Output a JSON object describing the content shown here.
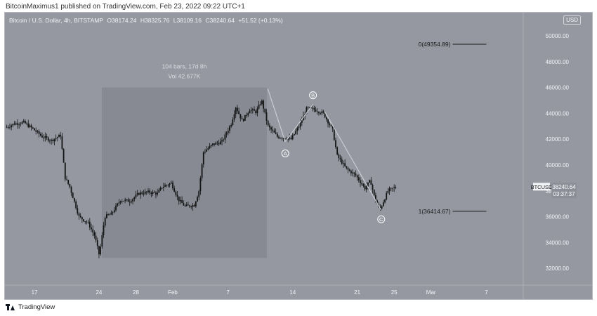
{
  "header": {
    "publisher": "BitcoinMaximus1 published on TradingView.com, Feb 23, 2022 09:22 UTC+1"
  },
  "symbol_bar": {
    "name": "Bitcoin / U.S. Dollar, 4h, BITSTAMP",
    "open": "O38174.24",
    "high": "H38325.76",
    "low": "L38109.16",
    "close": "C38240.64",
    "change": "+51.52 (+0.13%)"
  },
  "currency_button": "USD",
  "footer": {
    "brand": "TradingView"
  },
  "colors": {
    "background": "#9598a1",
    "candle": "#141414",
    "range_box": "#878a93",
    "text_light": "#f2f3f7",
    "wave_line": "#c9ccd3"
  },
  "chart_data": {
    "type": "candlestick",
    "y_ticks": [
      "32000.00",
      "34000.00",
      "36000.00",
      "38000.00",
      "40000.00",
      "42000.00",
      "44000.00",
      "46000.00",
      "48000.00",
      "50000.00"
    ],
    "ylim": [
      30700,
      51800
    ],
    "x_ticks": [
      {
        "label": "17",
        "day": 17
      },
      {
        "label": "24",
        "day": 24
      },
      {
        "label": "28",
        "day": 28
      },
      {
        "label": "Feb",
        "day": 32
      },
      {
        "label": "7",
        "day": 38
      },
      {
        "label": "14",
        "day": 45
      },
      {
        "label": "21",
        "day": 52
      },
      {
        "label": "25",
        "day": 56
      },
      {
        "label": "Mar",
        "day": 60
      },
      {
        "label": "7",
        "day": 66
      }
    ],
    "xlim": [
      13.8,
      70
    ],
    "price_path": [
      [
        14.0,
        42900
      ],
      [
        15.0,
        43200
      ],
      [
        16.0,
        43300
      ],
      [
        17.0,
        42800
      ],
      [
        18.0,
        42200
      ],
      [
        19.0,
        41900
      ],
      [
        20.0,
        42300
      ],
      [
        20.5,
        39000
      ],
      [
        21.0,
        38300
      ],
      [
        22.0,
        36000
      ],
      [
        23.0,
        35500
      ],
      [
        23.7,
        34500
      ],
      [
        24.2,
        33000
      ],
      [
        24.8,
        36000
      ],
      [
        25.5,
        36200
      ],
      [
        26.5,
        37300
      ],
      [
        27.5,
        37200
      ],
      [
        28.5,
        37800
      ],
      [
        29.5,
        37900
      ],
      [
        30.5,
        37800
      ],
      [
        31.0,
        38300
      ],
      [
        32.0,
        38600
      ],
      [
        32.8,
        37300
      ],
      [
        33.5,
        36800
      ],
      [
        34.5,
        36900
      ],
      [
        35.0,
        38000
      ],
      [
        35.5,
        41000
      ],
      [
        36.5,
        41600
      ],
      [
        37.5,
        41800
      ],
      [
        38.5,
        43200
      ],
      [
        39.0,
        44500
      ],
      [
        39.7,
        43400
      ],
      [
        40.5,
        44300
      ],
      [
        41.2,
        44100
      ],
      [
        41.8,
        45000
      ],
      [
        42.5,
        43000
      ],
      [
        43.5,
        42200
      ],
      [
        44.2,
        42100
      ],
      [
        45.0,
        42000
      ],
      [
        46.0,
        43200
      ],
      [
        46.7,
        44400
      ],
      [
        47.5,
        44300
      ],
      [
        48.5,
        44000
      ],
      [
        49.5,
        42700
      ],
      [
        50.0,
        40700
      ],
      [
        51.0,
        39700
      ],
      [
        52.0,
        39200
      ],
      [
        53.0,
        38200
      ],
      [
        53.6,
        38800
      ],
      [
        54.0,
        37600
      ],
      [
        54.6,
        36500
      ],
      [
        55.5,
        38000
      ],
      [
        56.2,
        38240
      ]
    ],
    "range_box": {
      "start_day": 24.3,
      "end_day": 42.2,
      "low": 32800,
      "high": 46000,
      "label_bars": "104 bars, 17d 8h",
      "label_vol": "Vol 42.677K"
    },
    "wave_labels": [
      {
        "label": "A",
        "day": 44.2,
        "price": 40900
      },
      {
        "label": "B",
        "day": 47.2,
        "price": 45400
      },
      {
        "label": "C",
        "day": 54.6,
        "price": 35800
      }
    ],
    "wave_lines": [
      [
        [
          42.3,
          45900
        ],
        [
          44.2,
          41800
        ]
      ],
      [
        [
          44.2,
          41800
        ],
        [
          47.2,
          44700
        ]
      ],
      [
        [
          48.5,
          44100
        ],
        [
          54.6,
          36500
        ]
      ]
    ],
    "fib_levels": [
      {
        "label": "0(49354.89)",
        "price": 49354.89,
        "start_day": 61.5,
        "end_day": 66.0
      },
      {
        "label": "1(36414.67)",
        "price": 36414.67,
        "start_day": 61.5,
        "end_day": 66.0
      }
    ],
    "last_price": {
      "symbol": "BTCUSD",
      "price": "38240.64",
      "countdown": "03:37:37",
      "value": 38240.64
    }
  }
}
